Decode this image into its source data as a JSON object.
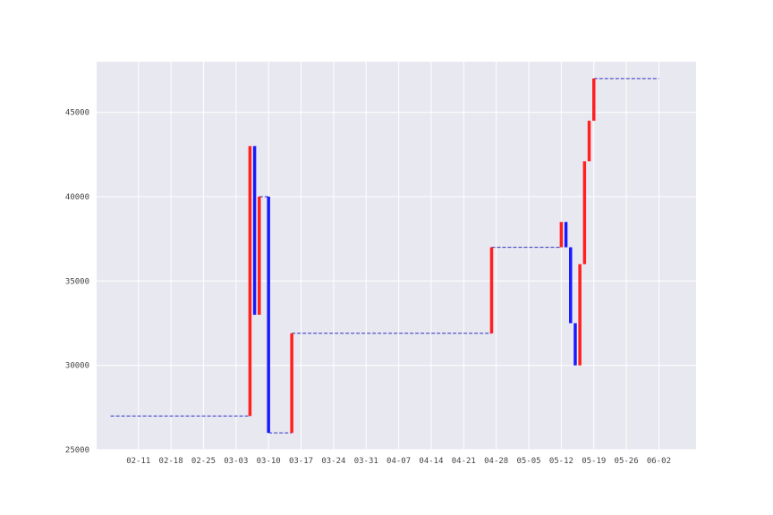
{
  "chart_data": {
    "type": "bar",
    "title": "",
    "xlabel": "",
    "ylabel": "",
    "grid": true,
    "colors": {
      "up": "#ff2020",
      "down": "#1a1aff",
      "flat": "#3030c8",
      "background": "#e8e8f0",
      "grid": "#ffffff"
    },
    "ylim": [
      25000,
      48000
    ],
    "xlim": [
      "2024-02-02",
      "2024-06-10"
    ],
    "x_tick_labels": [
      "02-11",
      "02-18",
      "02-25",
      "03-03",
      "03-10",
      "03-17",
      "03-24",
      "03-31",
      "04-07",
      "04-14",
      "04-21",
      "04-28",
      "05-05",
      "05-12",
      "05-19",
      "05-26",
      "06-02"
    ],
    "x_tick_dates": [
      "2024-02-11",
      "2024-02-18",
      "2024-02-25",
      "2024-03-03",
      "2024-03-10",
      "2024-03-17",
      "2024-03-24",
      "2024-03-31",
      "2024-04-07",
      "2024-04-14",
      "2024-04-21",
      "2024-04-28",
      "2024-05-05",
      "2024-05-12",
      "2024-05-19",
      "2024-05-26",
      "2024-06-02"
    ],
    "y_ticks": [
      25000,
      30000,
      35000,
      40000,
      45000
    ],
    "y_tick_labels": [
      "25000",
      "30000",
      "35000",
      "40000",
      "45000"
    ],
    "segments": [
      {
        "type": "flat",
        "date": "2024-02-05",
        "end_date": "2024-03-06",
        "value": 27000
      },
      {
        "type": "up",
        "date": "2024-03-06",
        "from": 27000,
        "to": 43000
      },
      {
        "type": "down",
        "date": "2024-03-07",
        "from": 43000,
        "to": 33000
      },
      {
        "type": "up",
        "date": "2024-03-08",
        "from": 33000,
        "to": 40000
      },
      {
        "type": "flat",
        "date": "2024-03-08",
        "end_date": "2024-03-10",
        "value": 40000
      },
      {
        "type": "down",
        "date": "2024-03-10",
        "from": 40000,
        "to": 26000
      },
      {
        "type": "flat",
        "date": "2024-03-10",
        "end_date": "2024-03-15",
        "value": 26000
      },
      {
        "type": "up",
        "date": "2024-03-15",
        "from": 26000,
        "to": 31900
      },
      {
        "type": "flat",
        "date": "2024-03-15",
        "end_date": "2024-04-27",
        "value": 31900
      },
      {
        "type": "up",
        "date": "2024-04-27",
        "from": 31900,
        "to": 37000
      },
      {
        "type": "flat",
        "date": "2024-04-27",
        "end_date": "2024-05-12",
        "value": 37000
      },
      {
        "type": "up",
        "date": "2024-05-12",
        "from": 37000,
        "to": 38500
      },
      {
        "type": "down",
        "date": "2024-05-13",
        "from": 38500,
        "to": 37000
      },
      {
        "type": "down",
        "date": "2024-05-14",
        "from": 37000,
        "to": 32500
      },
      {
        "type": "down",
        "date": "2024-05-15",
        "from": 32500,
        "to": 30000
      },
      {
        "type": "up",
        "date": "2024-05-16",
        "from": 30000,
        "to": 36000
      },
      {
        "type": "up",
        "date": "2024-05-17",
        "from": 36000,
        "to": 42100
      },
      {
        "type": "up",
        "date": "2024-05-18",
        "from": 42100,
        "to": 44500
      },
      {
        "type": "up",
        "date": "2024-05-19",
        "from": 44500,
        "to": 47000
      },
      {
        "type": "flat",
        "date": "2024-05-19",
        "end_date": "2024-06-02",
        "value": 47000
      }
    ]
  }
}
